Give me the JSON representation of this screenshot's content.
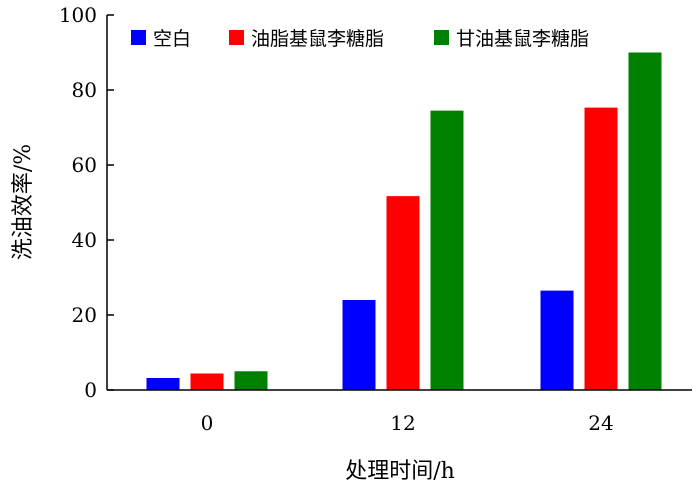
{
  "chart_data": {
    "type": "bar",
    "title": "",
    "xlabel": "处理时间/h",
    "ylabel": "洗油效率/%",
    "categories": [
      "0",
      "12",
      "24"
    ],
    "ylim": [
      0,
      100
    ],
    "yticks": [
      "0",
      "20",
      "40",
      "60",
      "80",
      "100"
    ],
    "grid": false,
    "legend_position": "top",
    "series": [
      {
        "name": "空白",
        "color": "#0000ff",
        "values": [
          3.2,
          24.0,
          26.5
        ]
      },
      {
        "name": "油脂基鼠李糖脂",
        "color": "#ff0000",
        "values": [
          4.4,
          51.7,
          75.3
        ]
      },
      {
        "name": "甘油基鼠李糖脂",
        "color": "#008000",
        "values": [
          5.0,
          74.5,
          90.0
        ]
      }
    ]
  }
}
